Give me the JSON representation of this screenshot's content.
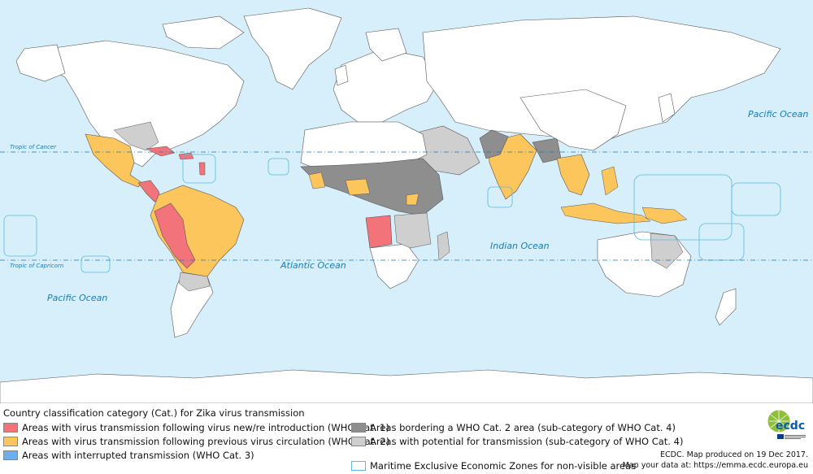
{
  "map": {
    "oceans": {
      "pacific_ne": "Pacific Ocean",
      "pacific_sw": "Pacific Ocean",
      "atlantic": "Atlantic Ocean",
      "indian": "Indian Ocean"
    },
    "tropics": {
      "cancer": "Tropic of Cancer",
      "capricorn": "Tropic of Capricorn"
    },
    "colors": {
      "ocean": "#d6effa",
      "land": "#ffffff",
      "cat1": "#f2737a",
      "cat2": "#fdc65c",
      "cat3": "#6aaef0",
      "bordering": "#8e8e8e",
      "potential": "#cfcfcf",
      "eez": "#5bbbe0"
    }
  },
  "legend": {
    "title": "Country classification category (Cat.) for Zika virus transmission",
    "items": [
      {
        "label": "Areas with virus transmission following virus new/re introduction (WHO Cat. 1)",
        "color": "#f2737a"
      },
      {
        "label": "Areas with virus transmission following previous virus circulation (WHO Cat. 2)",
        "color": "#fdc65c"
      },
      {
        "label": "Areas with interrupted transmission (WHO Cat. 3)",
        "color": "#6aaef0"
      },
      {
        "label": "Areas bordering a WHO Cat. 2 area (sub-category of WHO Cat. 4)",
        "color": "#8e8e8e"
      },
      {
        "label": "Areas with potential for transmission (sub-category of WHO Cat. 4)",
        "color": "#cfcfcf"
      },
      {
        "label": "Maritime Exclusive Economic Zones for non-visible areas",
        "color": "#ffffff"
      }
    ]
  },
  "credit": {
    "line1": "ECDC. Map produced on 19 Dec 2017.",
    "line2": "Map your data at: https://emma.ecdc.europa.eu"
  },
  "logo": {
    "text": "ecdc"
  }
}
